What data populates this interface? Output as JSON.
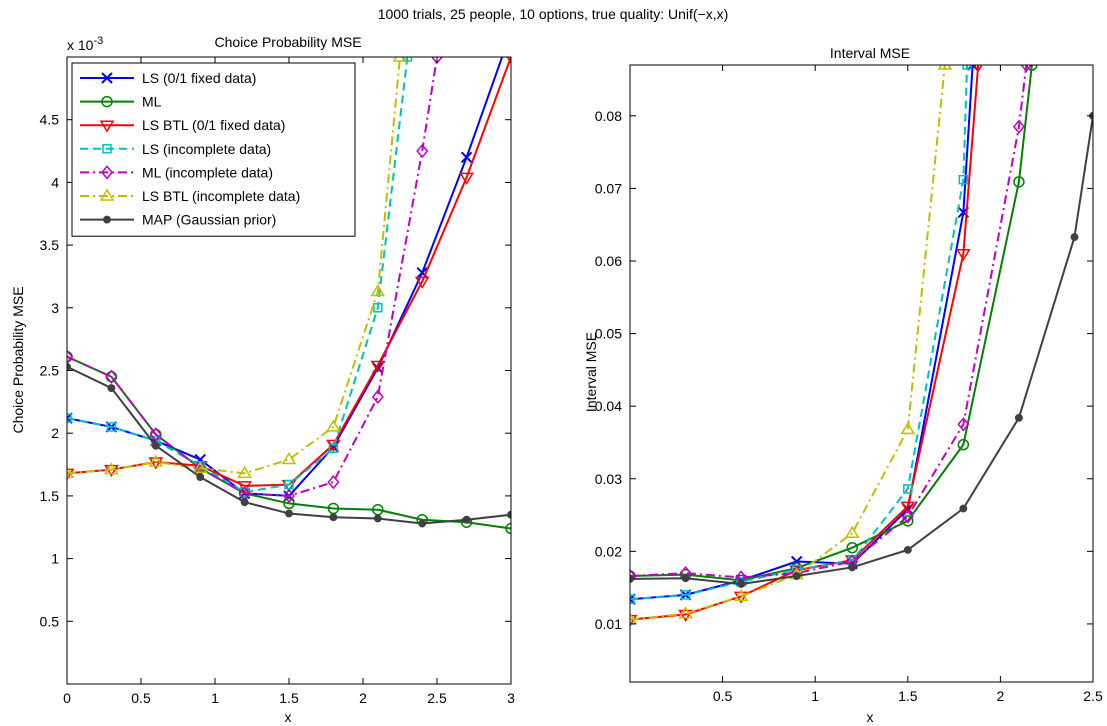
{
  "figure": {
    "suptitle": "1000 trials, 25 people, 10 options, true quality: Unif(−x,x)"
  },
  "chart_data": [
    {
      "type": "line",
      "title": "Choice Probability MSE",
      "xlabel": "x",
      "ylabel": "Choice Probability MSE",
      "exponent_label": "x 10",
      "exponent_power": "-3",
      "xlim": [
        0,
        3
      ],
      "ylim": [
        0,
        0.005
      ],
      "xticks": [
        0,
        0.5,
        1,
        1.5,
        2,
        2.5,
        3
      ],
      "xtick_labels": [
        "0",
        "0.5",
        "1",
        "1.5",
        "2",
        "2.5",
        "3"
      ],
      "yticks": [
        0.0005,
        0.001,
        0.0015,
        0.002,
        0.0025,
        0.003,
        0.0035,
        0.004,
        0.0045
      ],
      "ytick_labels": [
        "0.5",
        "1",
        "1.5",
        "2",
        "2.5",
        "3",
        "3.5",
        "4",
        "4.5"
      ],
      "grid": false,
      "legend_position": "top-left",
      "series": [
        {
          "name": "LS (0/1 fixed data)",
          "color": "#0000ff",
          "dash": "solid",
          "marker": "x",
          "x": [
            0,
            0.3,
            0.6,
            0.9,
            1.2,
            1.5,
            1.8,
            2.1,
            2.4,
            2.7,
            3.0
          ],
          "y": [
            0.00212,
            0.00205,
            0.00194,
            0.00179,
            0.00152,
            0.0015,
            0.00189,
            0.00252,
            0.00328,
            0.0042,
            0.0052
          ]
        },
        {
          "name": "ML",
          "color": "#008000",
          "dash": "solid",
          "marker": "o",
          "x": [
            0,
            0.3,
            0.6,
            0.9,
            1.2,
            1.5,
            1.8,
            2.1,
            2.4,
            2.7,
            3.0
          ],
          "y": [
            0.00261,
            0.00245,
            0.00199,
            0.00172,
            0.00152,
            0.00144,
            0.0014,
            0.00139,
            0.00131,
            0.00129,
            0.00124
          ]
        },
        {
          "name": "LS BTL (0/1 fixed data)",
          "color": "#ff0000",
          "dash": "solid",
          "marker": "v",
          "x": [
            0,
            0.3,
            0.6,
            0.9,
            1.2,
            1.5,
            1.8,
            2.1,
            2.4,
            2.7,
            3.0
          ],
          "y": [
            0.00168,
            0.00171,
            0.00177,
            0.00174,
            0.00158,
            0.00159,
            0.00191,
            0.00254,
            0.00321,
            0.00404,
            0.005
          ]
        },
        {
          "name": "LS (incomplete data)",
          "color": "#00bfbf",
          "dash": "dash",
          "marker": "s",
          "x": [
            0,
            0.3,
            0.6,
            0.9,
            1.2,
            1.5,
            1.8,
            2.1,
            2.3
          ],
          "y": [
            0.00212,
            0.00205,
            0.00194,
            0.00174,
            0.00153,
            0.00159,
            0.00188,
            0.003,
            0.005
          ]
        },
        {
          "name": "ML (incomplete data)",
          "color": "#bf00bf",
          "dash": "dashdot",
          "marker": "d",
          "x": [
            0,
            0.3,
            0.6,
            0.9,
            1.2,
            1.5,
            1.8,
            2.1,
            2.4,
            2.5
          ],
          "y": [
            0.00261,
            0.00245,
            0.00199,
            0.00172,
            0.00152,
            0.0015,
            0.00161,
            0.00229,
            0.00425,
            0.005
          ]
        },
        {
          "name": "LS BTL (incomplete data)",
          "color": "#bfbf00",
          "dash": "dashdot",
          "marker": "^",
          "x": [
            0,
            0.3,
            0.6,
            0.9,
            1.2,
            1.5,
            1.8,
            2.1,
            2.25
          ],
          "y": [
            0.00168,
            0.00171,
            0.00177,
            0.00172,
            0.00168,
            0.00179,
            0.00205,
            0.00313,
            0.005
          ]
        },
        {
          "name": "MAP (Gaussian prior)",
          "color": "#404040",
          "dash": "solid",
          "marker": "dot",
          "x": [
            0,
            0.3,
            0.6,
            0.9,
            1.2,
            1.5,
            1.8,
            2.1,
            2.4,
            2.7,
            3.0
          ],
          "y": [
            0.00253,
            0.00236,
            0.0019,
            0.00165,
            0.00145,
            0.00136,
            0.00133,
            0.00132,
            0.00128,
            0.00131,
            0.00135
          ]
        }
      ]
    },
    {
      "type": "line",
      "title": "Interval MSE",
      "xlabel": "x",
      "ylabel": "Interval MSE",
      "xlim": [
        0,
        2.5
      ],
      "ylim": [
        0.002,
        0.087
      ],
      "xticks": [
        0.5,
        1,
        1.5,
        2,
        2.5
      ],
      "xtick_labels": [
        "0.5",
        "1",
        "1.5",
        "2",
        "2.5"
      ],
      "yticks": [
        0.01,
        0.02,
        0.03,
        0.04,
        0.05,
        0.06,
        0.07,
        0.08
      ],
      "ytick_labels": [
        "0.01",
        "0.02",
        "0.03",
        "0.04",
        "0.05",
        "0.06",
        "0.07",
        "0.08"
      ],
      "grid": false,
      "series": [
        {
          "name": "LS (0/1 fixed data)",
          "color": "#0000ff",
          "dash": "solid",
          "marker": "x",
          "x": [
            0,
            0.3,
            0.6,
            0.9,
            1.2,
            1.5,
            1.8,
            1.85
          ],
          "y": [
            0.0134,
            0.014,
            0.016,
            0.0186,
            0.0183,
            0.0258,
            0.0667,
            0.087
          ]
        },
        {
          "name": "ML",
          "color": "#008000",
          "dash": "solid",
          "marker": "o",
          "x": [
            0,
            0.3,
            0.6,
            0.9,
            1.2,
            1.5,
            1.8,
            2.1,
            2.17
          ],
          "y": [
            0.0166,
            0.0168,
            0.016,
            0.0177,
            0.0205,
            0.0242,
            0.0347,
            0.0709,
            0.087
          ]
        },
        {
          "name": "LS BTL (0/1 fixed data)",
          "color": "#ff0000",
          "dash": "solid",
          "marker": "v",
          "x": [
            0,
            0.3,
            0.6,
            0.9,
            1.2,
            1.5,
            1.8,
            1.88
          ],
          "y": [
            0.0106,
            0.0113,
            0.0138,
            0.0174,
            0.0188,
            0.0262,
            0.061,
            0.087
          ]
        },
        {
          "name": "LS (incomplete data)",
          "color": "#00bfbf",
          "dash": "dash",
          "marker": "s",
          "x": [
            0,
            0.3,
            0.6,
            0.9,
            1.2,
            1.5,
            1.8,
            1.82
          ],
          "y": [
            0.0134,
            0.014,
            0.0158,
            0.0175,
            0.0187,
            0.0286,
            0.0712,
            0.087
          ]
        },
        {
          "name": "ML (incomplete data)",
          "color": "#bf00bf",
          "dash": "dashdot",
          "marker": "d",
          "x": [
            0,
            0.3,
            0.6,
            0.9,
            1.2,
            1.5,
            1.8,
            2.1,
            2.14
          ],
          "y": [
            0.0166,
            0.017,
            0.0164,
            0.017,
            0.0186,
            0.0248,
            0.0375,
            0.0785,
            0.087
          ]
        },
        {
          "name": "LS BTL (incomplete data)",
          "color": "#bfbf00",
          "dash": "dashdot",
          "marker": "^",
          "x": [
            0,
            0.3,
            0.6,
            0.9,
            1.2,
            1.5,
            1.7
          ],
          "y": [
            0.0106,
            0.0114,
            0.0138,
            0.0168,
            0.0225,
            0.0368,
            0.087
          ]
        },
        {
          "name": "MAP (Gaussian prior)",
          "color": "#404040",
          "dash": "solid",
          "marker": "dot",
          "x": [
            0,
            0.3,
            0.6,
            0.9,
            1.2,
            1.5,
            1.8,
            2.1,
            2.4,
            2.5
          ],
          "y": [
            0.0162,
            0.0163,
            0.0155,
            0.0166,
            0.0178,
            0.0202,
            0.0259,
            0.0384,
            0.0633,
            0.08
          ]
        }
      ]
    }
  ]
}
